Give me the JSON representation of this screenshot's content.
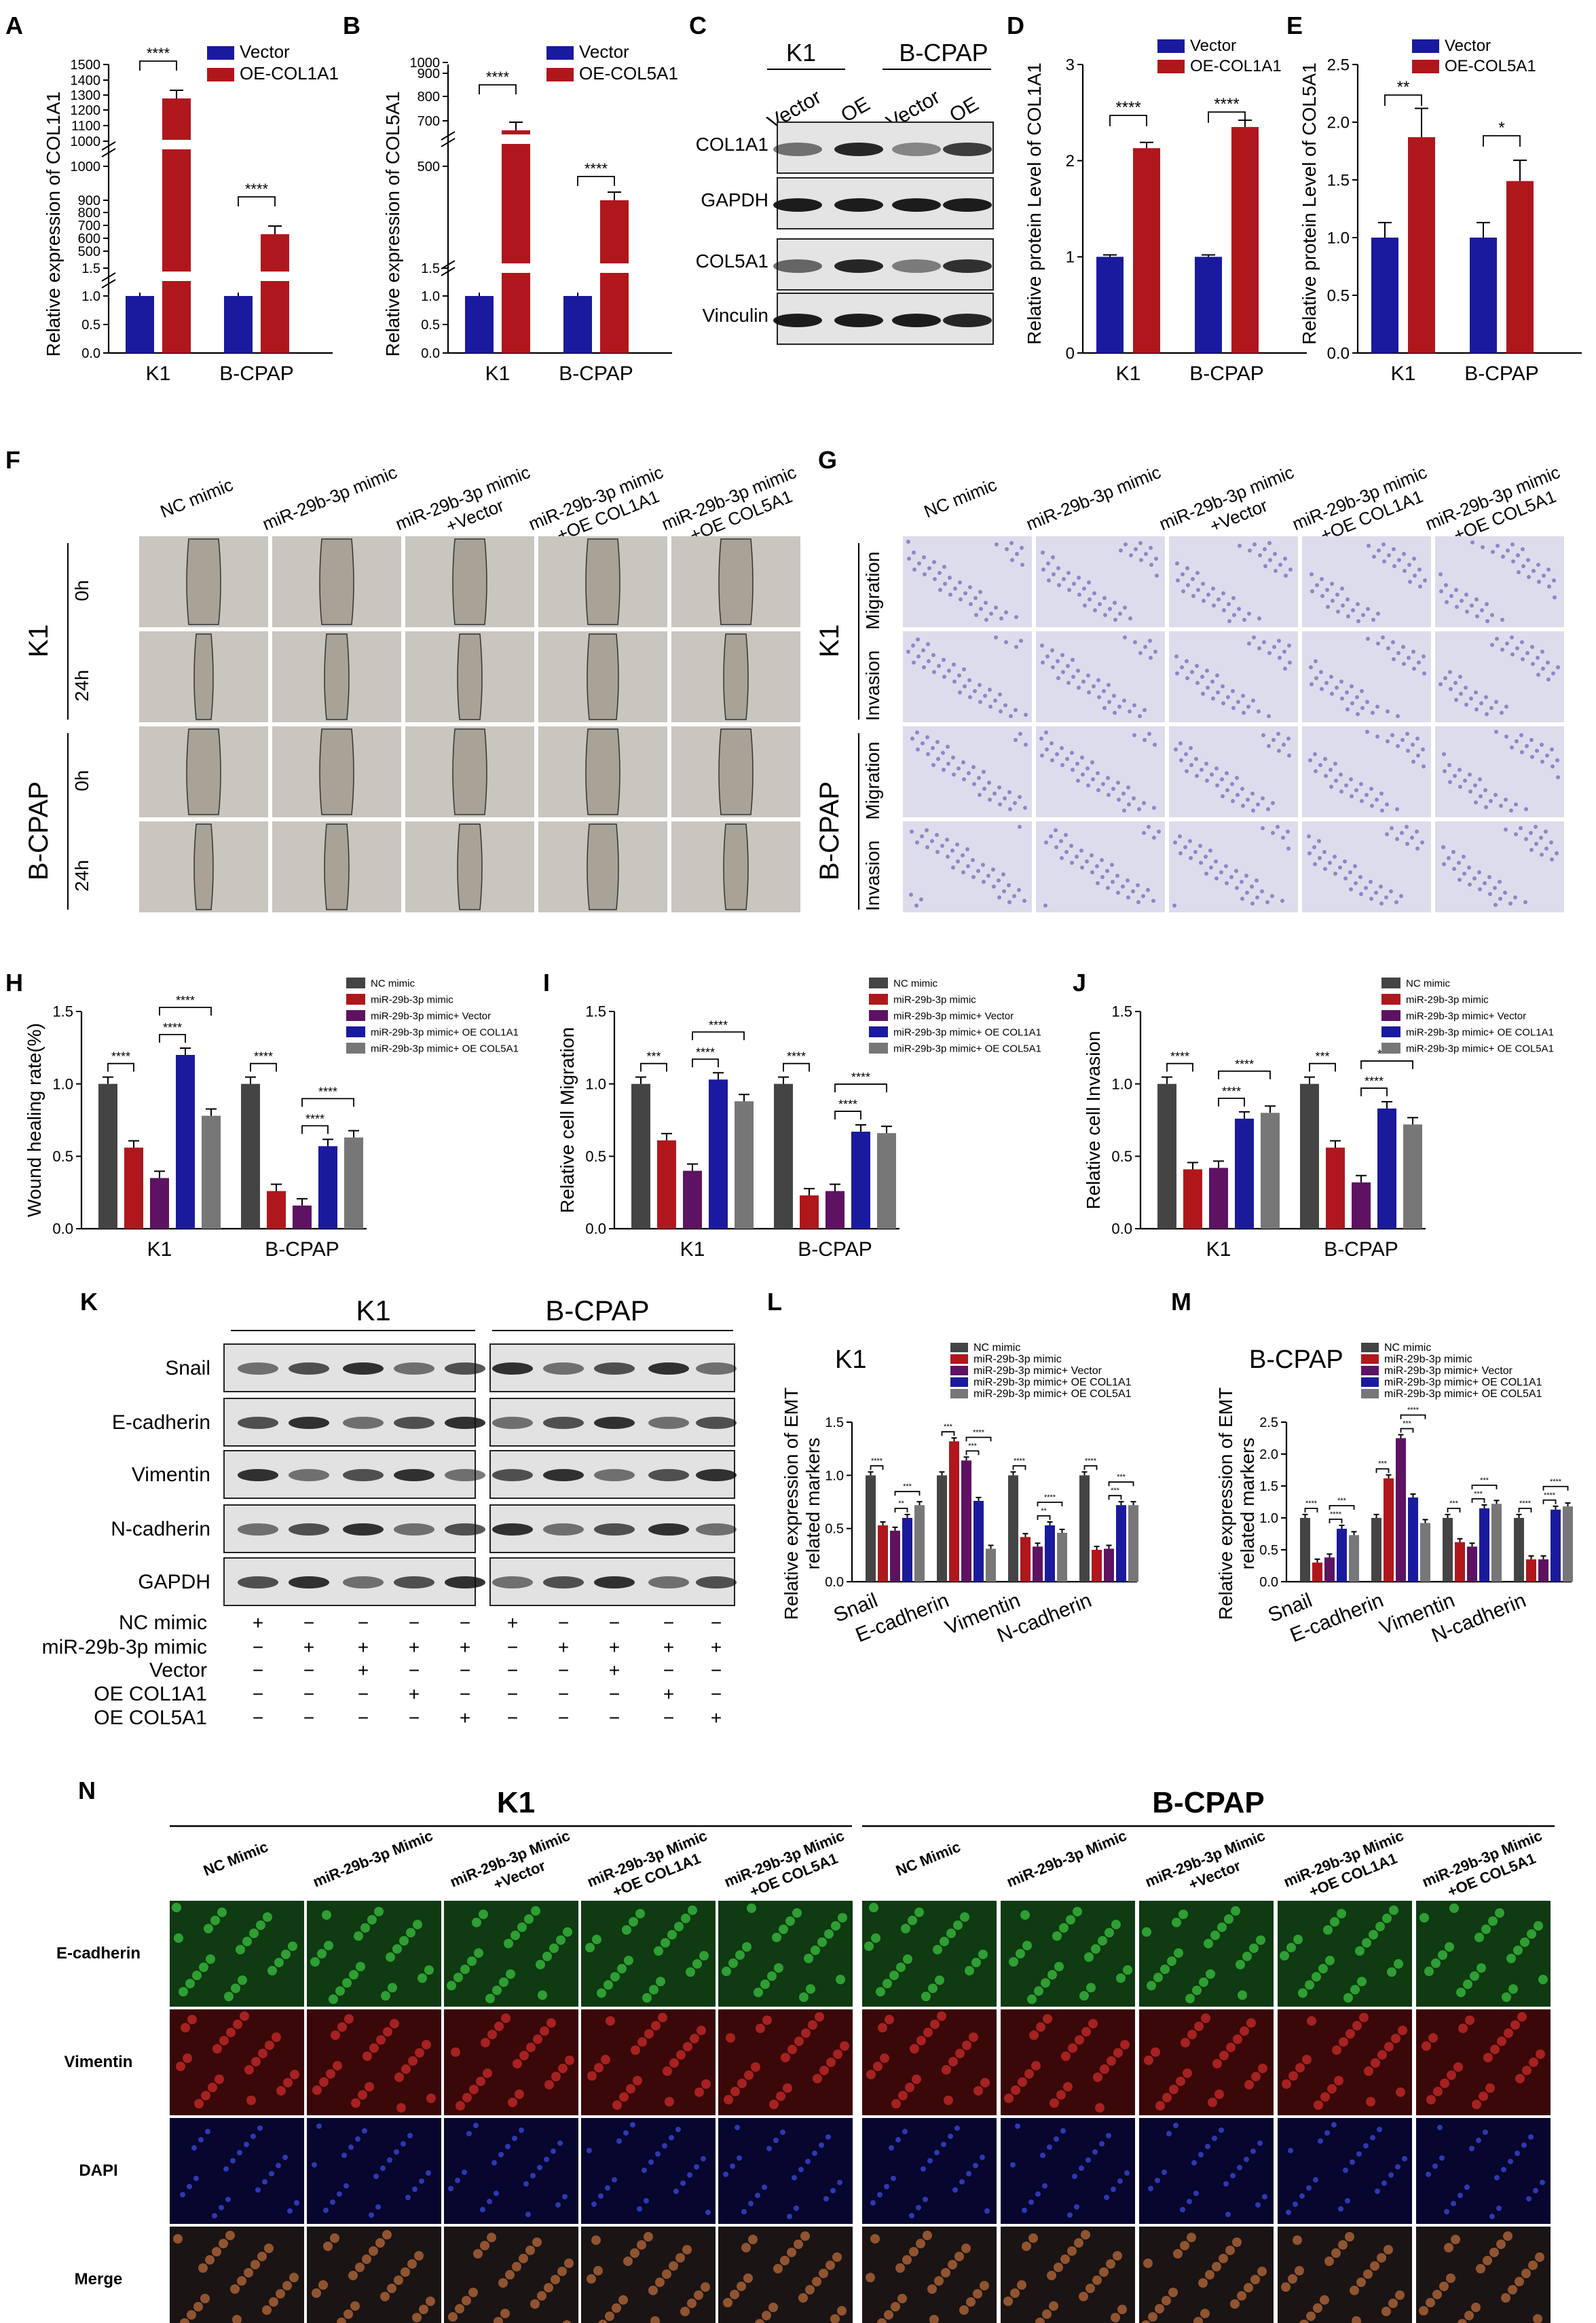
{
  "colors": {
    "blue": "#1a1a9e",
    "red": "#b0171c",
    "purple": "#5e1262",
    "gray": "#444444",
    "lightgray": "#777777"
  },
  "panels": {
    "A": {
      "letter": "A",
      "ylabel": "Relative expression of COL1A1",
      "legend": [
        "Vector",
        "OE-COL1A1"
      ],
      "ticks_low": [
        "0.0",
        "0.5",
        "1.0",
        "1.5"
      ],
      "ticks_mid": [
        "500",
        "600",
        "700",
        "800",
        "900",
        "1000"
      ],
      "ticks_high": [
        "1000",
        "1100",
        "1200",
        "1300",
        "1400",
        "1500"
      ],
      "categories": [
        "K1",
        "B-CPAP"
      ],
      "sig": [
        "****",
        "****"
      ]
    },
    "B": {
      "letter": "B",
      "ylabel": "Relative expression of COL5A1",
      "legend": [
        "Vector",
        "OE-COL5A1"
      ],
      "ticks_low": [
        "0.0",
        "0.5",
        "1.0",
        "1.5"
      ],
      "ticks_mid": [
        "500"
      ],
      "ticks_high": [
        "700",
        "800",
        "900",
        "1000"
      ],
      "categories": [
        "K1",
        "B-CPAP"
      ],
      "sig": [
        "****",
        "****"
      ]
    },
    "C": {
      "letter": "C",
      "groups": [
        "K1",
        "B-CPAP"
      ],
      "lanes": [
        "Vector",
        "OE",
        "Vector",
        "OE"
      ],
      "rows": [
        "COL1A1",
        "GAPDH",
        "COL5A1",
        "Vinculin"
      ]
    },
    "D": {
      "letter": "D",
      "ylabel": "Relative protein Level of COL1A1",
      "legend": [
        "Vector",
        "OE-COL1A1"
      ],
      "ticks": [
        "0",
        "1",
        "2",
        "3"
      ],
      "categories": [
        "K1",
        "B-CPAP"
      ],
      "sig": [
        "****",
        "****"
      ]
    },
    "E": {
      "letter": "E",
      "ylabel": "Relative protein Level of COL5A1",
      "legend": [
        "Vector",
        "OE-COL5A1"
      ],
      "ticks": [
        "0.0",
        "0.5",
        "1.0",
        "1.5",
        "2.0",
        "2.5"
      ],
      "categories": [
        "K1",
        "B-CPAP"
      ],
      "sig": [
        "**",
        "*"
      ]
    },
    "F": {
      "letter": "F",
      "columns": [
        "NC mimic",
        "miR-29b-3p mimic",
        "miR-29b-3p mimic\n+Vector",
        "miR-29b-3p mimic\n+OE COL1A1",
        "miR-29b-3p mimic\n+OE COL5A1"
      ],
      "groups": [
        "K1",
        "B-CPAP"
      ],
      "rows": [
        "0h",
        "24h"
      ]
    },
    "G": {
      "letter": "G",
      "columns": [
        "NC mimic",
        "miR-29b-3p mimic",
        "miR-29b-3p mimic\n+Vector",
        "miR-29b-3p mimic\n+OE COL1A1",
        "miR-29b-3p mimic\n+OE COL5A1"
      ],
      "groups": [
        "K1",
        "B-CPAP"
      ],
      "rows": [
        "Migration",
        "Invasion"
      ]
    },
    "H": {
      "letter": "H",
      "ylabel": "Wound healing rate(%)",
      "ticks": [
        "0.0",
        "0.5",
        "1.0",
        "1.5"
      ]
    },
    "I": {
      "letter": "I",
      "ylabel": "Relative cell Migration",
      "ticks": [
        "0.0",
        "0.5",
        "1.0",
        "1.5"
      ]
    },
    "J": {
      "letter": "J",
      "ylabel": "Relative cell Invasion",
      "ticks": [
        "0.0",
        "0.5",
        "1.0",
        "1.5"
      ]
    },
    "HIJ_legend": [
      "NC mimic",
      "miR-29b-3p mimic",
      "miR-29b-3p mimic+ Vector",
      "miR-29b-3p mimic+ OE COL1A1",
      "miR-29b-3p mimic+ OE COL5A1"
    ],
    "K": {
      "letter": "K",
      "groups": [
        "K1",
        "B-CPAP"
      ],
      "rows": [
        "Snail",
        "E-cadherin",
        "Vimentin",
        "N-cadherin",
        "GAPDH"
      ],
      "treatments": [
        "NC mimic",
        "miR-29b-3p mimic",
        "Vector",
        "OE COL1A1",
        "OE COL5A1"
      ],
      "signs": [
        [
          "+",
          "−",
          "−",
          "−",
          "−"
        ],
        [
          "−",
          "+",
          "+",
          "+",
          "+"
        ],
        [
          "−",
          "−",
          "+",
          "−",
          "−"
        ],
        [
          "−",
          "−",
          "−",
          "+",
          "−"
        ],
        [
          "−",
          "−",
          "−",
          "−",
          "+"
        ]
      ]
    },
    "L": {
      "letter": "L",
      "title": "K1",
      "ylabel1": "Relative expression of EMT",
      "ylabel2": "related markers",
      "ticks": [
        "0.0",
        "0.5",
        "1.0",
        "1.5"
      ]
    },
    "M": {
      "letter": "M",
      "title": "B-CPAP",
      "ylabel1": "Relative expression of EMT",
      "ylabel2": "related markers",
      "ticks": [
        "0.0",
        "0.5",
        "1.0",
        "1.5",
        "2.0",
        "2.5"
      ]
    },
    "LM_legend": [
      "NC mimic",
      "miR-29b-3p mimic",
      "miR-29b-3p mimic+ Vector",
      "miR-29b-3p mimic+ OE COL1A1",
      "miR-29b-3p mimic+ OE COL5A1"
    ],
    "N": {
      "letter": "N",
      "groups": [
        "K1",
        "B-CPAP"
      ],
      "columns": [
        "NC Mimic",
        "miR-29b-3p Mimic",
        "miR-29b-3p Mimic\n+Vector",
        "miR-29b-3p Mimic\n+OE COL1A1",
        "miR-29b-3p Mimic\n+OE COL5A1"
      ],
      "rows": [
        "E-cadherin",
        "Vimentin",
        "DAPI",
        "Merge"
      ]
    }
  },
  "chart_data": [
    {
      "type": "bar",
      "id": "A",
      "categories": [
        "K1",
        "B-CPAP"
      ],
      "series": [
        {
          "name": "Vector",
          "values": [
            1.0,
            1.0
          ]
        },
        {
          "name": "OE-COL1A1",
          "values": [
            1290,
            600
          ]
        }
      ],
      "ylabel": "Relative expression of COL1A1"
    },
    {
      "type": "bar",
      "id": "B",
      "categories": [
        "K1",
        "B-CPAP"
      ],
      "series": [
        {
          "name": "Vector",
          "values": [
            1.0,
            1.0
          ]
        },
        {
          "name": "OE-COL5A1",
          "values": [
            750,
            330
          ]
        }
      ],
      "ylabel": "Relative expression of COL5A1"
    },
    {
      "type": "bar",
      "id": "D",
      "categories": [
        "K1",
        "B-CPAP"
      ],
      "series": [
        {
          "name": "Vector",
          "values": [
            1.0,
            1.0
          ],
          "err": [
            0.02,
            0.02
          ]
        },
        {
          "name": "OE-COL1A1",
          "values": [
            2.13,
            2.35
          ],
          "err": [
            0.06,
            0.07
          ]
        }
      ],
      "ylim": [
        0,
        3
      ],
      "ylabel": "Relative protein Level of COL1A1"
    },
    {
      "type": "bar",
      "id": "E",
      "categories": [
        "K1",
        "B-CPAP"
      ],
      "series": [
        {
          "name": "Vector",
          "values": [
            1.0,
            1.0
          ],
          "err": [
            0.13,
            0.13
          ]
        },
        {
          "name": "OE-COL5A1",
          "values": [
            1.87,
            1.49
          ],
          "err": [
            0.25,
            0.18
          ]
        }
      ],
      "ylim": [
        0,
        2.5
      ],
      "ylabel": "Relative protein Level of COL5A1"
    },
    {
      "type": "bar",
      "id": "H",
      "categories": [
        "K1",
        "B-CPAP"
      ],
      "series": [
        {
          "name": "NC mimic",
          "values": [
            1.0,
            1.0
          ]
        },
        {
          "name": "miR-29b-3p mimic",
          "values": [
            0.56,
            0.26
          ]
        },
        {
          "name": "miR-29b-3p mimic+ Vector",
          "values": [
            0.35,
            0.16
          ]
        },
        {
          "name": "miR-29b-3p mimic+ OE COL1A1",
          "values": [
            1.2,
            0.57
          ]
        },
        {
          "name": "miR-29b-3p mimic+ OE COL5A1",
          "values": [
            0.78,
            0.63
          ]
        }
      ],
      "ylim": [
        0,
        1.5
      ],
      "ylabel": "Wound healing rate(%)",
      "sig": [
        "****",
        "****",
        "****",
        "****",
        "****",
        "****"
      ]
    },
    {
      "type": "bar",
      "id": "I",
      "categories": [
        "K1",
        "B-CPAP"
      ],
      "series": [
        {
          "name": "NC mimic",
          "values": [
            1.0,
            1.0
          ]
        },
        {
          "name": "miR-29b-3p mimic",
          "values": [
            0.61,
            0.23
          ]
        },
        {
          "name": "miR-29b-3p mimic+ Vector",
          "values": [
            0.4,
            0.26
          ]
        },
        {
          "name": "miR-29b-3p mimic+ OE COL1A1",
          "values": [
            1.03,
            0.67
          ]
        },
        {
          "name": "miR-29b-3p mimic+ OE COL5A1",
          "values": [
            0.88,
            0.66
          ]
        }
      ],
      "ylim": [
        0,
        1.5
      ],
      "ylabel": "Relative cell Migration",
      "sig": [
        "***",
        "****",
        "****",
        "****",
        "****",
        "****"
      ]
    },
    {
      "type": "bar",
      "id": "J",
      "categories": [
        "K1",
        "B-CPAP"
      ],
      "series": [
        {
          "name": "NC mimic",
          "values": [
            1.0,
            1.0
          ]
        },
        {
          "name": "miR-29b-3p mimic",
          "values": [
            0.41,
            0.56
          ]
        },
        {
          "name": "miR-29b-3p mimic+ Vector",
          "values": [
            0.42,
            0.32
          ]
        },
        {
          "name": "miR-29b-3p mimic+ OE COL1A1",
          "values": [
            0.76,
            0.83
          ]
        },
        {
          "name": "miR-29b-3p mimic+ OE COL5A1",
          "values": [
            0.8,
            0.72
          ]
        }
      ],
      "ylim": [
        0,
        1.5
      ],
      "ylabel": "Relative cell Invasion",
      "sig": [
        "****",
        "****",
        "****",
        "***",
        "****",
        "****"
      ]
    },
    {
      "type": "bar",
      "id": "L",
      "title": "K1",
      "categories": [
        "Snail",
        "E-cadherin",
        "Vimentin",
        "N-cadherin"
      ],
      "series": [
        {
          "name": "NC mimic",
          "values": [
            1.0,
            1.0,
            1.0,
            1.0
          ]
        },
        {
          "name": "miR-29b-3p mimic",
          "values": [
            0.53,
            1.32,
            0.42,
            0.3
          ]
        },
        {
          "name": "miR-29b-3p mimic+ Vector",
          "values": [
            0.48,
            1.14,
            0.33,
            0.31
          ]
        },
        {
          "name": "miR-29b-3p mimic+ OE COL1A1",
          "values": [
            0.6,
            0.76,
            0.53,
            0.72
          ]
        },
        {
          "name": "miR-29b-3p mimic+ OE COL5A1",
          "values": [
            0.72,
            0.31,
            0.46,
            0.72
          ]
        }
      ],
      "ylim": [
        0,
        1.5
      ],
      "sig": [
        "****",
        "**",
        "***",
        "***",
        "***",
        "****",
        "****",
        "**",
        "****",
        "****",
        "***",
        "***"
      ]
    },
    {
      "type": "bar",
      "id": "M",
      "title": "B-CPAP",
      "categories": [
        "Snail",
        "E-cadherin",
        "Vimentin",
        "N-cadherin"
      ],
      "series": [
        {
          "name": "NC mimic",
          "values": [
            1.0,
            1.0,
            1.0,
            1.0
          ]
        },
        {
          "name": "miR-29b-3p mimic",
          "values": [
            0.3,
            1.62,
            0.62,
            0.35
          ]
        },
        {
          "name": "miR-29b-3p mimic+ Vector",
          "values": [
            0.38,
            2.25,
            0.55,
            0.35
          ]
        },
        {
          "name": "miR-29b-3p mimic+ OE COL1A1",
          "values": [
            0.83,
            1.32,
            1.15,
            1.13
          ]
        },
        {
          "name": "miR-29b-3p mimic+ OE COL5A1",
          "values": [
            0.73,
            0.92,
            1.22,
            1.18
          ]
        }
      ],
      "ylim": [
        0,
        2.5
      ],
      "sig": [
        "****",
        "****",
        "***",
        "***",
        "***",
        "****",
        "***",
        "***",
        "***",
        "****",
        "****",
        "****"
      ]
    }
  ]
}
